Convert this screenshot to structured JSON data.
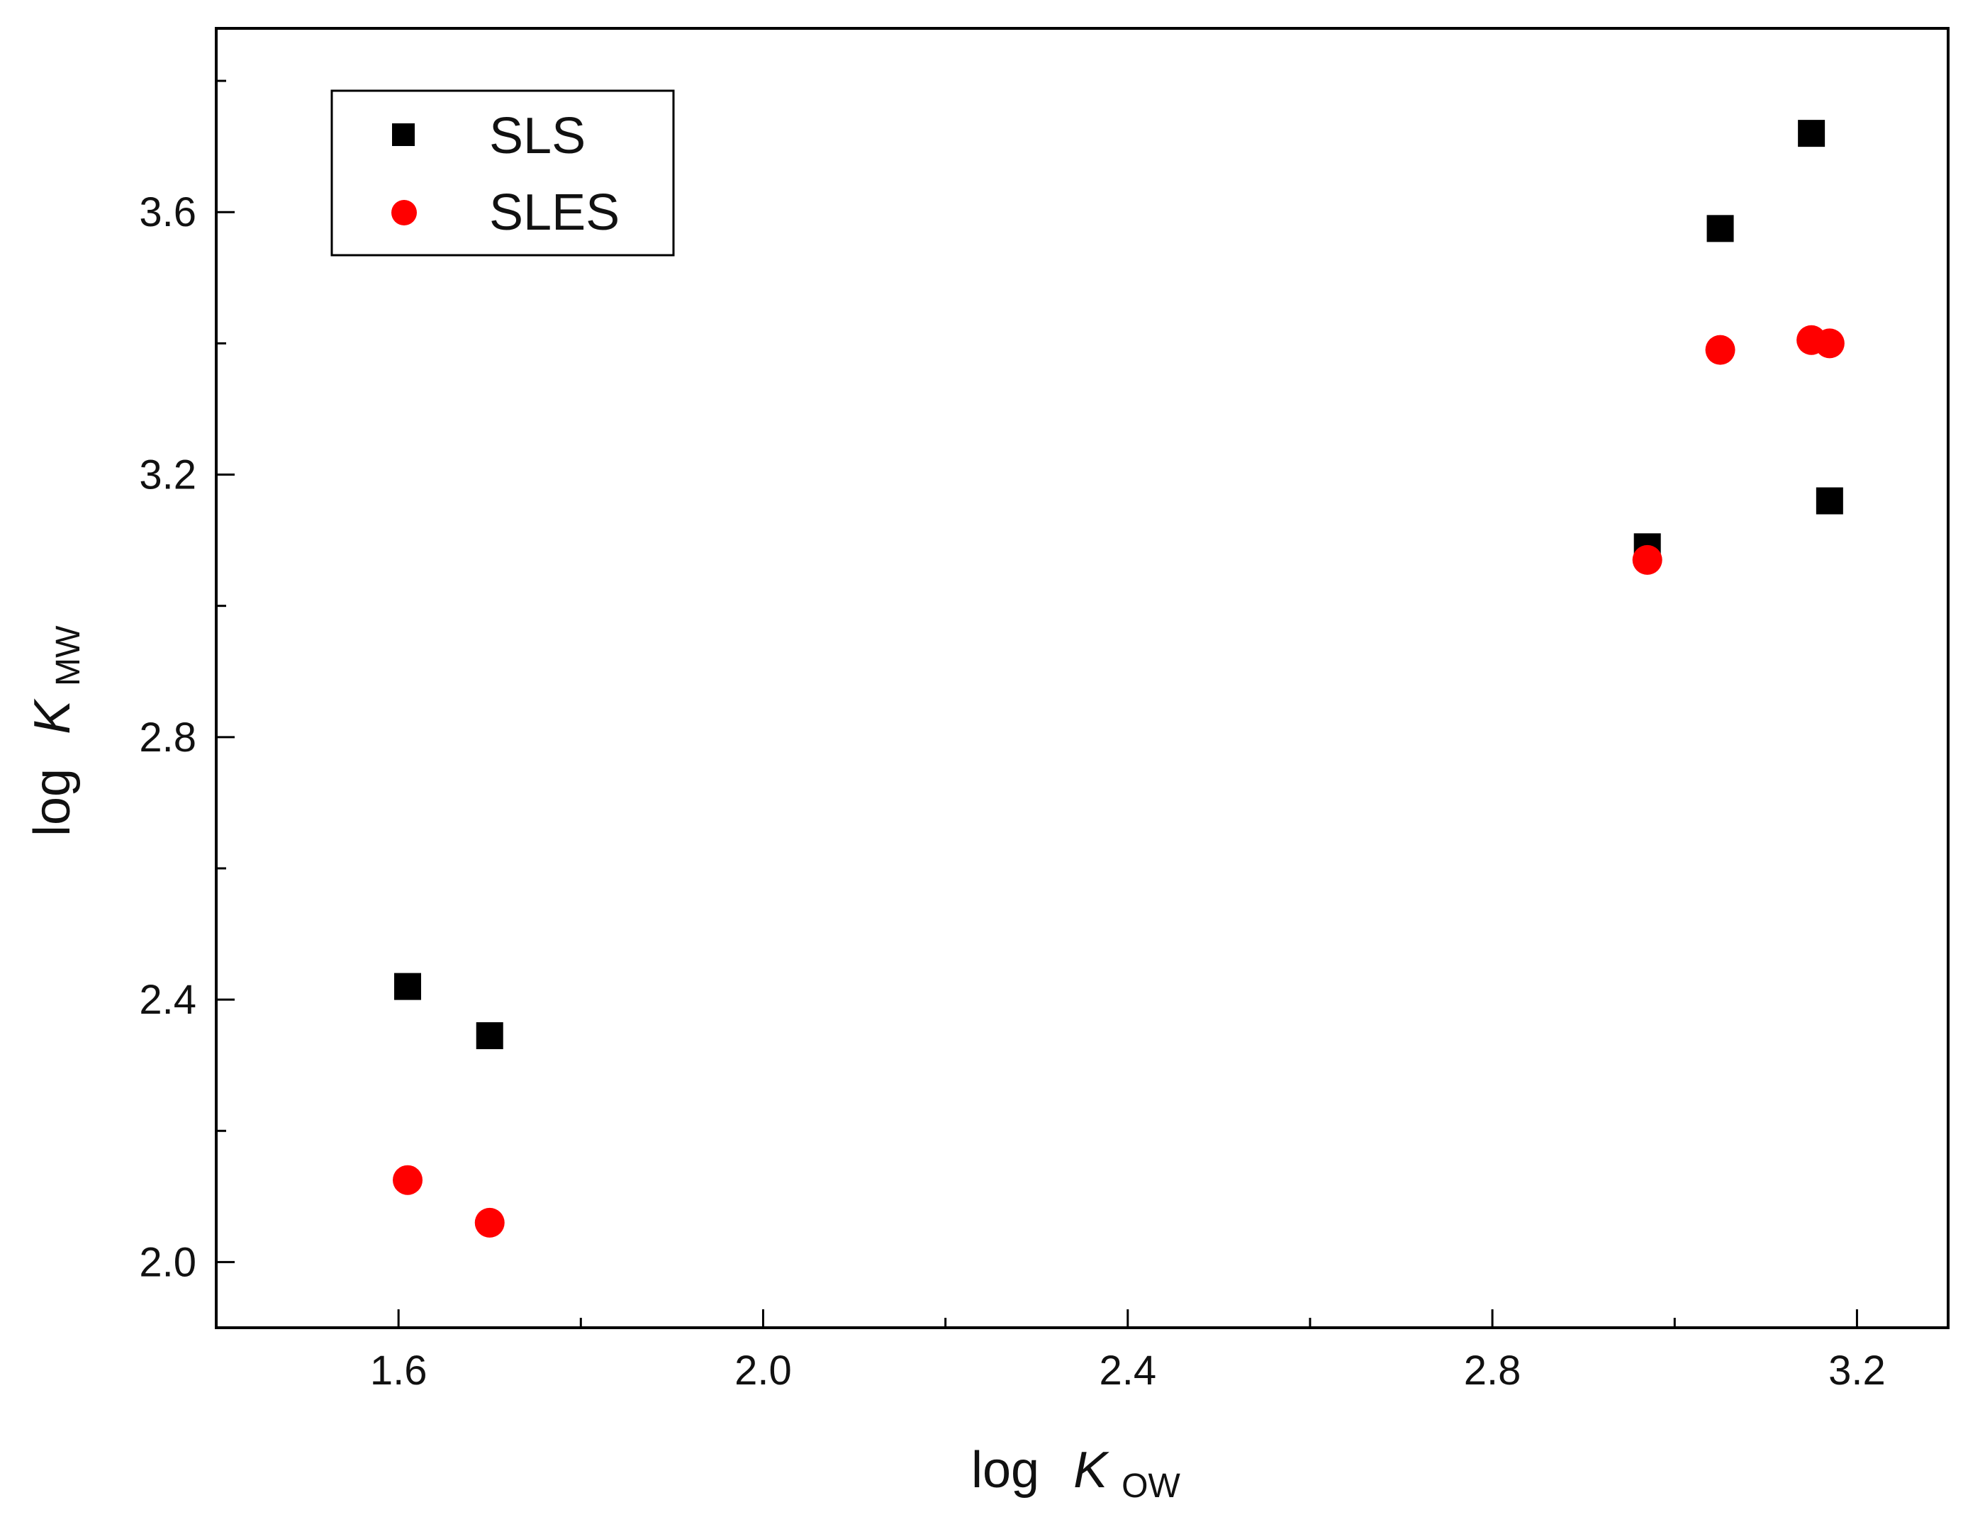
{
  "chart_data": {
    "type": "scatter",
    "title": "",
    "xlabel": {
      "prefix": "log",
      "var": "K",
      "sub": "OW"
    },
    "ylabel": {
      "prefix": "log",
      "var": "K",
      "sub": "MW"
    },
    "xlim": [
      1.4,
      3.3
    ],
    "ylim": [
      1.9,
      3.88
    ],
    "x_ticks_major": [
      1.6,
      2.0,
      2.4,
      2.8,
      3.2
    ],
    "x_tick_labels": [
      "1.6",
      "2.0",
      "2.4",
      "2.8",
      "3.2"
    ],
    "x_ticks_minor": [
      1.8,
      2.2,
      2.6,
      3.0
    ],
    "y_ticks_major": [
      2.0,
      2.4,
      2.8,
      3.2,
      3.6
    ],
    "y_tick_labels": [
      "2.0",
      "2.4",
      "2.8",
      "3.2",
      "3.6"
    ],
    "y_ticks_minor": [
      2.2,
      2.6,
      3.0,
      3.4,
      3.8
    ],
    "grid": false,
    "legend_position": "top-left",
    "series": [
      {
        "name": "SLS",
        "marker": "square",
        "color": "#000000",
        "points": [
          {
            "x": 1.61,
            "y": 2.42
          },
          {
            "x": 1.7,
            "y": 2.345
          },
          {
            "x": 2.97,
            "y": 3.09
          },
          {
            "x": 3.05,
            "y": 3.575
          },
          {
            "x": 3.15,
            "y": 3.72
          },
          {
            "x": 3.17,
            "y": 3.16
          }
        ]
      },
      {
        "name": "SLES",
        "marker": "circle",
        "color": "#ff0000",
        "points": [
          {
            "x": 1.61,
            "y": 2.125
          },
          {
            "x": 1.7,
            "y": 2.06
          },
          {
            "x": 2.97,
            "y": 3.07
          },
          {
            "x": 3.05,
            "y": 3.39
          },
          {
            "x": 3.15,
            "y": 3.405
          },
          {
            "x": 3.17,
            "y": 3.4
          }
        ]
      }
    ]
  }
}
